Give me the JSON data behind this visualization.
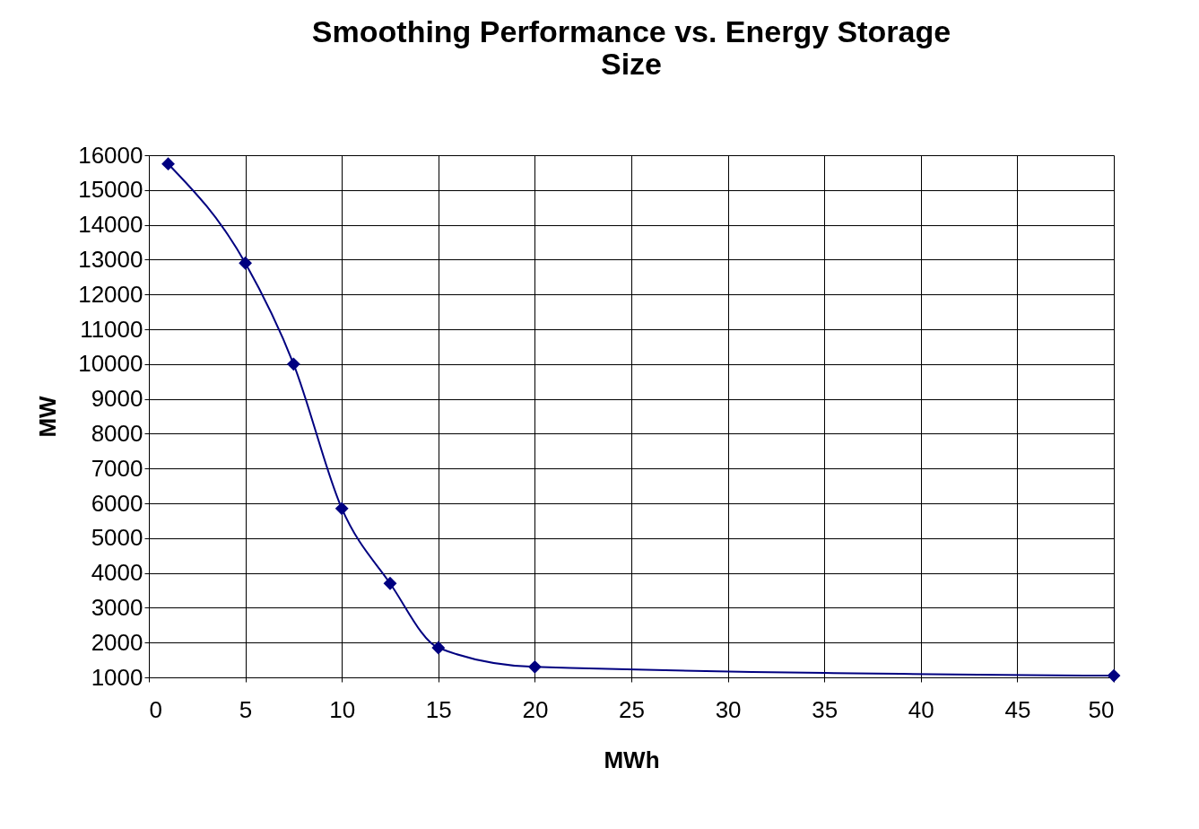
{
  "chart_data": {
    "type": "line",
    "title": [
      "Smoothing Performance vs. Energy Storage",
      "Size"
    ],
    "xlabel": "MWh",
    "ylabel": "MW",
    "x": [
      1,
      5,
      7.5,
      10,
      12.5,
      15,
      20,
      50
    ],
    "series": [
      {
        "color": "#000080",
        "values": [
          15750,
          12900,
          10000,
          5850,
          3700,
          1850,
          1300,
          1050
        ]
      }
    ],
    "xlim": [
      0,
      50
    ],
    "xticks": [
      0,
      5,
      10,
      15,
      20,
      25,
      30,
      35,
      40,
      45,
      50
    ],
    "ylim": [
      1000,
      16000
    ],
    "yticks": [
      1000,
      2000,
      3000,
      4000,
      5000,
      6000,
      7000,
      8000,
      9000,
      10000,
      11000,
      12000,
      13000,
      14000,
      15000,
      16000
    ],
    "grid": true,
    "marker": "diamond",
    "line_style": "solid"
  }
}
